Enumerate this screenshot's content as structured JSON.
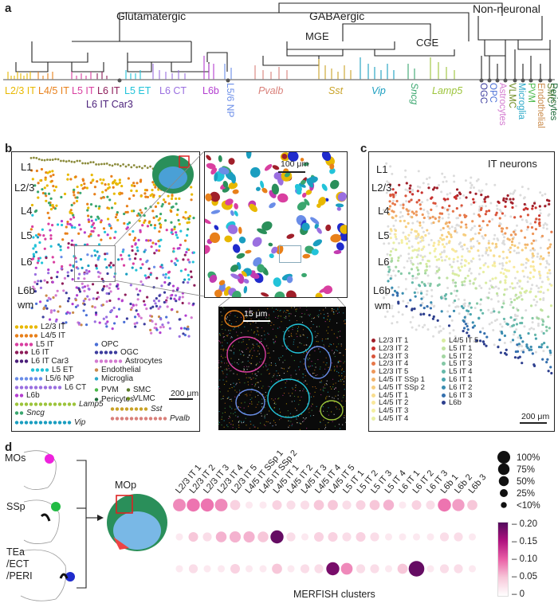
{
  "panels": {
    "a": "a",
    "b": "b",
    "c": "c",
    "d": "d"
  },
  "panel_a": {
    "groups": [
      "Glutamatergic",
      "GABAergic",
      "Non-neuronal"
    ],
    "subgroups": [
      "MGE",
      "CGE"
    ],
    "clusters": [
      {
        "label": "L2/3 IT",
        "color": "#e8b800"
      },
      {
        "label": "L4/5 IT",
        "color": "#e8801a"
      },
      {
        "label": "L5 IT",
        "color": "#d93fa0"
      },
      {
        "label": "L6 IT",
        "color": "#8e1d5a"
      },
      {
        "label": "L5 ET",
        "color": "#22c3d9"
      },
      {
        "label": "L6 CT",
        "color": "#9a6fe0"
      },
      {
        "label": "L6b",
        "color": "#b33ed0"
      },
      {
        "label": "L5/6 NP",
        "color": "#6a8de8"
      },
      {
        "label": "Pvalb",
        "color": "#d9807a"
      },
      {
        "label": "Sst",
        "color": "#c9a227"
      },
      {
        "label": "Vip",
        "color": "#1a9ec0"
      },
      {
        "label": "Sncg",
        "color": "#3aa66e"
      },
      {
        "label": "Lamp5",
        "color": "#9cc43a"
      }
    ],
    "l6_it_car3": "L6 IT Car3",
    "nonneuronal_labels": [
      {
        "label": "OGC",
        "color": "#3d3d9e"
      },
      {
        "label": "OPC",
        "color": "#4a6fd6"
      },
      {
        "label": "Astrocytes",
        "color": "#d37ad0"
      },
      {
        "label": "VLMC",
        "color": "#6b8a1e"
      },
      {
        "label": "Microglia",
        "color": "#2aa8c8"
      },
      {
        "label": "PVM",
        "color": "#48b848"
      },
      {
        "label": "Endothelial",
        "color": "#c98a4a"
      },
      {
        "label": "SMC",
        "color": "#5a7a2a"
      },
      {
        "label": "Pericytes",
        "color": "#1f6b3a"
      }
    ]
  },
  "panel_b": {
    "layers": [
      "L1",
      "L2/3",
      "L4",
      "L5",
      "L6",
      "L6b",
      "wm"
    ],
    "scale_main": "200 μm",
    "scale_zoom": "100 μm",
    "scale_cell": "15 μm",
    "legend_left": [
      {
        "label": "L2/3 IT",
        "color": "#e8b800"
      },
      {
        "label": "L4/5 IT",
        "color": "#e8801a"
      },
      {
        "label": "L5 IT",
        "color": "#d93fa0"
      },
      {
        "label": "L6 IT",
        "color": "#8e1d5a"
      },
      {
        "label": "L6 IT Car3",
        "color": "#4a1f7a"
      },
      {
        "label": "L5 ET",
        "color": "#22c3d9"
      },
      {
        "label": "L5/6 NP",
        "color": "#6a8de8"
      },
      {
        "label": "L6 CT",
        "color": "#9a6fe0"
      },
      {
        "label": "L6b",
        "color": "#b33ed0"
      },
      {
        "label": "Lamp5",
        "color": "#9cc43a"
      },
      {
        "label": "Sncg",
        "color": "#3aa66e"
      },
      {
        "label": "Vip",
        "color": "#1a9ec0"
      }
    ],
    "legend_right": [
      {
        "label": "OPC",
        "color": "#4a6fd6"
      },
      {
        "label": "OGC",
        "color": "#3d3d9e"
      },
      {
        "label": "Astrocytes",
        "color": "#d37ad0"
      },
      {
        "label": "Endothelial",
        "color": "#c98a4a"
      },
      {
        "label": "Microglia",
        "color": "#2aa8c8"
      },
      {
        "label": "PVM",
        "color": "#48b848"
      },
      {
        "label": "Pericytes",
        "color": "#1f6b3a"
      },
      {
        "label": "SMC",
        "color": "#5a7a2a"
      },
      {
        "label": "VLMC",
        "color": "#6b8a1e"
      },
      {
        "label": "Sst",
        "color": "#c9a227"
      },
      {
        "label": "Pvalb",
        "color": "#d9807a"
      }
    ]
  },
  "panel_c": {
    "title": "IT neurons",
    "layers": [
      "L1",
      "L2/3",
      "L4",
      "L5",
      "L6",
      "L6b",
      "wm"
    ],
    "scale": "200 μm",
    "legend_col1": [
      {
        "label": "L2/3 IT 1",
        "color": "#a01f2a"
      },
      {
        "label": "L2/3 IT 2",
        "color": "#c8312e"
      },
      {
        "label": "L2/3 IT 3",
        "color": "#d9543a"
      },
      {
        "label": "L2/3 IT 4",
        "color": "#e6784a"
      },
      {
        "label": "L2/3 IT 5",
        "color": "#ee985a"
      },
      {
        "label": "L4/5 IT SSp 1",
        "color": "#f2b46a"
      },
      {
        "label": "L4/5 IT SSp 2",
        "color": "#f6cd7e"
      },
      {
        "label": "L4/5 IT 1",
        "color": "#f8dd8e"
      },
      {
        "label": "L4/5 IT 2",
        "color": "#f9e89a"
      },
      {
        "label": "L4/5 IT 3",
        "color": "#f4efa0"
      },
      {
        "label": "L4/5 IT 4",
        "color": "#e8efa2"
      }
    ],
    "legend_col2": [
      {
        "label": "L4/5 IT 5",
        "color": "#d8eca0"
      },
      {
        "label": "L5 IT 1",
        "color": "#c0e3a0"
      },
      {
        "label": "L5 IT 2",
        "color": "#a3d6a2"
      },
      {
        "label": "L5 IT 3",
        "color": "#84c8a6"
      },
      {
        "label": "L5 IT 4",
        "color": "#66b8aa"
      },
      {
        "label": "L6 IT 1",
        "color": "#4aa4ae"
      },
      {
        "label": "L6 IT 2",
        "color": "#3a8cb0"
      },
      {
        "label": "L6 IT 3",
        "color": "#3570ae"
      },
      {
        "label": "L6b",
        "color": "#2d3f8e"
      }
    ]
  },
  "panel_d": {
    "regions": [
      "MOs",
      "SSp",
      "TEa\n/ECT\n/PERI"
    ],
    "map_label": "MOp",
    "xlabel": "MERFISH clusters",
    "colorbar_ticks": [
      "0.20",
      "0.15",
      "0.10",
      "0.05",
      "0"
    ],
    "size_legend": [
      "100%",
      "75%",
      "50%",
      "25%",
      "<10%"
    ],
    "chart_data": {
      "type": "scatter",
      "xlabel": "MERFISH clusters",
      "categories": [
        "L2/3 IT 1",
        "L2/3 IT 2",
        "L2/3 IT 3",
        "L2/3 IT 4",
        "L2/3 IT 5",
        "L4/5 IT SSp 1",
        "L4/5 IT SSp 2",
        "L4/5 IT 1",
        "L4/5 IT 2",
        "L4/5 IT 3",
        "L4/5 IT 4",
        "L4/5 IT 5",
        "L5 IT 1",
        "L5 IT 2",
        "L5 IT 3",
        "L5 IT 4",
        "L6 IT 1",
        "L6 IT 2",
        "L6 IT 3",
        "L6b 1",
        "L6b 2",
        "L6b 3"
      ],
      "rows": [
        "MOs",
        "SSp",
        "TEa/ECT/PERI"
      ],
      "size_percent": [
        [
          55,
          60,
          60,
          55,
          30,
          10,
          10,
          25,
          20,
          20,
          30,
          30,
          20,
          25,
          30,
          35,
          10,
          25,
          20,
          60,
          50,
          30
        ],
        [
          10,
          25,
          20,
          35,
          40,
          40,
          35,
          60,
          20,
          10,
          25,
          25,
          20,
          25,
          20,
          10,
          10,
          10,
          10,
          20,
          20,
          10
        ],
        [
          10,
          20,
          10,
          10,
          25,
          10,
          10,
          30,
          10,
          20,
          20,
          60,
          45,
          20,
          20,
          10,
          30,
          95,
          10,
          20,
          20,
          10
        ]
      ],
      "color_value": [
        [
          0.08,
          0.09,
          0.09,
          0.08,
          0.04,
          0.02,
          0.02,
          0.04,
          0.03,
          0.03,
          0.05,
          0.05,
          0.03,
          0.04,
          0.05,
          0.06,
          0.02,
          0.04,
          0.03,
          0.09,
          0.07,
          0.05
        ],
        [
          0.02,
          0.05,
          0.03,
          0.06,
          0.06,
          0.06,
          0.05,
          0.19,
          0.03,
          0.02,
          0.04,
          0.04,
          0.03,
          0.04,
          0.03,
          0.02,
          0.02,
          0.02,
          0.02,
          0.03,
          0.03,
          0.02
        ],
        [
          0.02,
          0.03,
          0.02,
          0.02,
          0.04,
          0.02,
          0.02,
          0.05,
          0.02,
          0.03,
          0.03,
          0.18,
          0.08,
          0.03,
          0.03,
          0.02,
          0.05,
          0.19,
          0.02,
          0.03,
          0.03,
          0.02
        ]
      ],
      "colorbar_range": [
        0,
        0.2
      ]
    }
  }
}
